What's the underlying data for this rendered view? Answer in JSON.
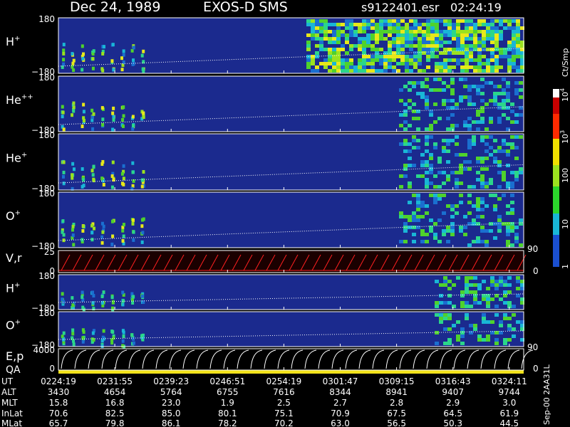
{
  "header": {
    "date": "Dec 24, 1989",
    "instrument": "EXOS-D SMS",
    "file": "s9122401.esr",
    "time": "02:24:19"
  },
  "panels": [
    {
      "label": "H",
      "sup": "+",
      "top": "180",
      "bottom": "−180"
    },
    {
      "label": "He",
      "sup": "++",
      "top": "180",
      "bottom": "−180"
    },
    {
      "label": "He",
      "sup": "+",
      "top": "180",
      "bottom": "−180"
    },
    {
      "label": "O",
      "sup": "+",
      "top": "180",
      "bottom": "−180"
    },
    {
      "label": "V,r",
      "sup": "",
      "top": "25",
      "bottom": "0",
      "right_top": "90",
      "right_bottom": "0"
    },
    {
      "label": "H",
      "sup": "+",
      "top": "180",
      "bottom": "−180"
    },
    {
      "label": "O",
      "sup": "+",
      "top": "180",
      "bottom": "−180"
    },
    {
      "label": "E,p",
      "sup": "",
      "label2": "QA",
      "top": "4000",
      "bottom": "0",
      "right_top": "90",
      "right_bottom": "0"
    }
  ],
  "colorbar": {
    "title": "Ct/Smp",
    "labels": [
      {
        "base": "10",
        "exp": "4"
      },
      {
        "base": "10",
        "exp": "3"
      },
      {
        "base": "100",
        "exp": ""
      },
      {
        "base": "10",
        "exp": ""
      },
      {
        "base": "1",
        "exp": ""
      }
    ]
  },
  "footer_note": "Sep-00  2AA31L",
  "table": {
    "rows": [
      {
        "name": "UT",
        "values": [
          "0224:19",
          "0231:55",
          "0239:23",
          "0246:51",
          "0254:19",
          "0301:47",
          "0309:15",
          "0316:43",
          "0324:11"
        ]
      },
      {
        "name": "ALT",
        "values": [
          "3430",
          "4654",
          "5764",
          "6755",
          "7616",
          "8344",
          "8941",
          "9407",
          "9744"
        ]
      },
      {
        "name": "MLT",
        "values": [
          "15.8",
          "16.8",
          "23.0",
          "1.9",
          "2.5",
          "2.7",
          "2.8",
          "2.9",
          "3.0"
        ]
      },
      {
        "name": "InLat",
        "values": [
          "70.6",
          "82.5",
          "85.0",
          "80.1",
          "75.1",
          "70.9",
          "67.5",
          "64.5",
          "61.9"
        ]
      },
      {
        "name": "MLat",
        "values": [
          "65.7",
          "79.8",
          "86.1",
          "78.2",
          "70.2",
          "63.0",
          "56.5",
          "50.3",
          "44.5"
        ]
      }
    ]
  }
}
